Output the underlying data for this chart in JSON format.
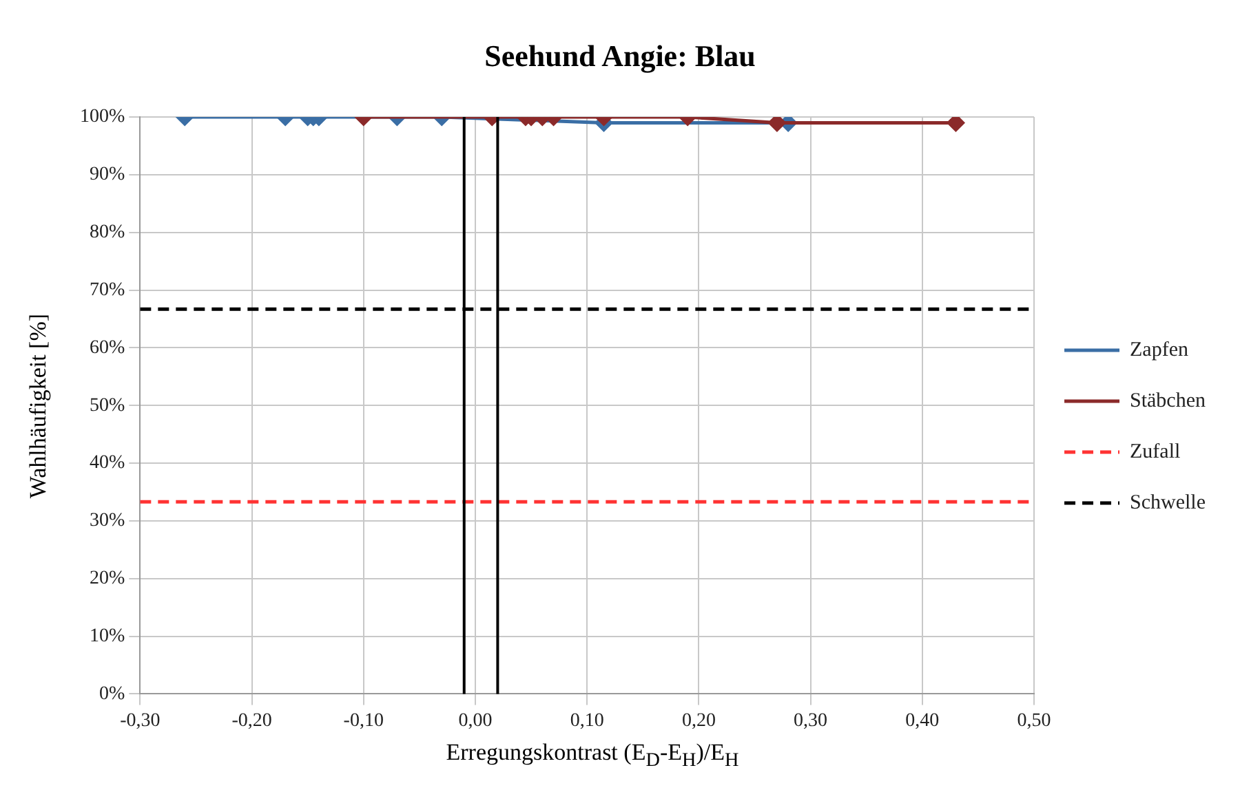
{
  "chart_data": {
    "type": "scatter",
    "title": "Seehund Angie: Blau",
    "xlabel": "Erregungskontrast (E$_{D}$-E$_{H}$)/E$_{H}$",
    "ylabel": "Wahlhäufigkeit [%]",
    "xlim": [
      -0.3,
      0.5
    ],
    "xticks": [
      {
        "value": -0.3,
        "label": "-0,30"
      },
      {
        "value": -0.2,
        "label": "-0,20"
      },
      {
        "value": -0.1,
        "label": "-0,10"
      },
      {
        "value": 0,
        "label": "0,00"
      },
      {
        "value": 0.1,
        "label": "0,10"
      },
      {
        "value": 0.2,
        "label": "0,20"
      },
      {
        "value": 0.3,
        "label": "0,30"
      },
      {
        "value": 0.4,
        "label": "0,40"
      },
      {
        "value": 0.5,
        "label": "0,50"
      }
    ],
    "ylim": [
      0,
      100
    ],
    "yticks": [
      {
        "value": 0,
        "label": "0%"
      },
      {
        "value": 10,
        "label": "10%"
      },
      {
        "value": 20,
        "label": "20%"
      },
      {
        "value": 30,
        "label": "30%"
      },
      {
        "value": 40,
        "label": "40%"
      },
      {
        "value": 50,
        "label": "50%"
      },
      {
        "value": 60,
        "label": "60%"
      },
      {
        "value": 70,
        "label": "70%"
      },
      {
        "value": 80,
        "label": "80%"
      },
      {
        "value": 90,
        "label": "90%"
      },
      {
        "value": 100,
        "label": "100%"
      }
    ],
    "grid": true,
    "legend": "right",
    "marker": "diamond",
    "series": [
      {
        "name": "Zapfen",
        "type": "line",
        "color": "#3a6ea5",
        "x": [
          -0.26,
          -0.17,
          -0.15,
          -0.145,
          -0.14,
          -0.07,
          -0.03,
          0.115,
          0.28
        ],
        "values": [
          100,
          100,
          100,
          100,
          100,
          100,
          100,
          99,
          99
        ]
      },
      {
        "name": "Stäbchen",
        "type": "line",
        "color": "#8b2a2a",
        "x": [
          -0.1,
          0.015,
          0.045,
          0.05,
          0.06,
          0.07,
          0.115,
          0.19,
          0.27,
          0.43
        ],
        "values": [
          100,
          100,
          100,
          100,
          100,
          100,
          100,
          100,
          99,
          99
        ]
      },
      {
        "name": "Zufall",
        "type": "line",
        "color": "#ff3333",
        "marker": "none",
        "line_style": "dashed",
        "x": [
          -0.3,
          0.5
        ],
        "values": [
          33.3,
          33.3
        ]
      },
      {
        "name": "Schwelle",
        "type": "line",
        "color": "#000000",
        "marker": "none",
        "line_style": "dashed",
        "x": [
          -0.3,
          0.5
        ],
        "values": [
          66.7,
          66.7
        ]
      }
    ],
    "ref_lines": [
      {
        "axis": "x",
        "value": -0.01,
        "color": "#000000"
      },
      {
        "axis": "x",
        "value": 0.02,
        "color": "#000000"
      }
    ]
  }
}
